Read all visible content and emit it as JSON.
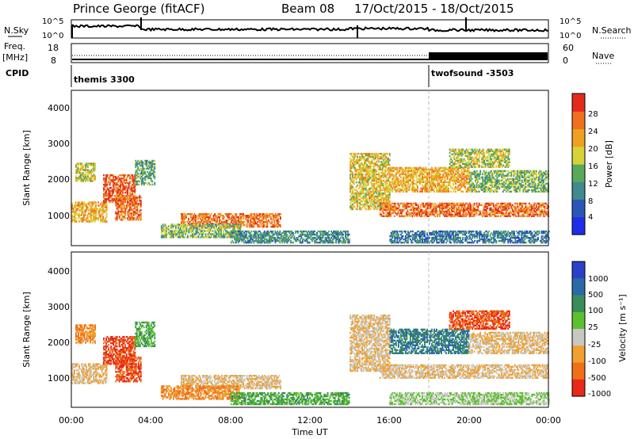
{
  "header": {
    "station": "Prince George (fitACF)",
    "beam": "Beam 08",
    "dates": "17/Oct/2015 - 18/Oct/2015"
  },
  "top_panels": {
    "nsky_label": "N.Sky",
    "nsearch_label": "N.Search",
    "noise_ticks_left": [
      "10^5",
      "10^0"
    ],
    "noise_ticks_right": [
      "10^5",
      "10^0"
    ],
    "freq_label_1": "Freq.",
    "freq_label_2": "[MHz]",
    "freq_ticks": [
      "18",
      "8"
    ],
    "nave_label": "Nave",
    "nave_ticks": [
      "60",
      "0"
    ],
    "cpid_label": "CPID",
    "cpid_programs": [
      {
        "name": "themis 3300",
        "start_hour": 0
      },
      {
        "name": "twofsound -3503",
        "start_hour": 18
      }
    ]
  },
  "power_panel": {
    "ylabel": "Slant Range [km]",
    "yticks": [
      "1000",
      "2000",
      "3000",
      "4000"
    ],
    "colorbar_label": "Power [dB]",
    "colorbar_ticks": [
      "4",
      "8",
      "12",
      "16",
      "20",
      "24",
      "28"
    ],
    "colors": [
      "#1f2de8",
      "#2a56b8",
      "#3e8a8c",
      "#5aa85c",
      "#d8d23a",
      "#f0a020",
      "#f07020",
      "#e42a1c"
    ]
  },
  "velocity_panel": {
    "ylabel": "Slant Range [km]",
    "yticks": [
      "1000",
      "2000",
      "3000",
      "4000"
    ],
    "colorbar_label": "Velocity [m s⁻¹]",
    "colorbar_ticks": [
      "1000",
      "500",
      "100",
      "25",
      "-25",
      "-100",
      "-500",
      "-1000"
    ],
    "colors": [
      "#2a40c8",
      "#2a6aa8",
      "#3a8c5a",
      "#5cc030",
      "#c8c8c0",
      "#f0a030",
      "#f07018",
      "#e82818"
    ]
  },
  "x_axis": {
    "label": "Time UT",
    "ticks": [
      "00:00",
      "04:00",
      "08:00",
      "12:00",
      "16:00",
      "20:00",
      "00:00"
    ]
  },
  "chart_data": {
    "type": "heatmap",
    "title": "Prince George (fitACF) Beam 08 17/Oct/2015 - 18/Oct/2015",
    "xlabel": "Time UT",
    "ylabel": "Slant Range [km]",
    "xlim_hours": [
      0,
      24
    ],
    "ylim_km": [
      180,
      4600
    ],
    "panels": [
      "Power [dB]",
      "Velocity [m s⁻¹]"
    ],
    "power_range_db": [
      0,
      30
    ],
    "velocity_range_ms": [
      -1000,
      1000
    ],
    "scatter_regions": [
      {
        "t0": 0.0,
        "t1": 1.8,
        "r0": 850,
        "r1": 1400,
        "power": 20,
        "velocity": -25
      },
      {
        "t0": 0.2,
        "t1": 1.2,
        "r0": 2000,
        "r1": 2500,
        "power": 16,
        "velocity": -100
      },
      {
        "t0": 1.6,
        "t1": 3.2,
        "r0": 1400,
        "r1": 2200,
        "power": 26,
        "velocity": -500
      },
      {
        "t0": 2.2,
        "t1": 3.5,
        "r0": 900,
        "r1": 1600,
        "power": 24,
        "velocity": -500
      },
      {
        "t0": 3.2,
        "t1": 4.2,
        "r0": 1900,
        "r1": 2600,
        "power": 12,
        "velocity": 100
      },
      {
        "t0": 5.5,
        "t1": 10.5,
        "r0": 700,
        "r1": 1100,
        "power": 24,
        "velocity": -25
      },
      {
        "t0": 4.5,
        "t1": 8.5,
        "r0": 400,
        "r1": 800,
        "power": 14,
        "velocity": -100
      },
      {
        "t0": 8.0,
        "t1": 14.0,
        "r0": 250,
        "r1": 600,
        "power": 10,
        "velocity": 100
      },
      {
        "t0": 14.0,
        "t1": 16.0,
        "r0": 1200,
        "r1": 2800,
        "power": 18,
        "velocity": -25
      },
      {
        "t0": 15.5,
        "t1": 24.0,
        "r0": 1000,
        "r1": 1400,
        "power": 24,
        "velocity": -25
      },
      {
        "t0": 16.0,
        "t1": 20.0,
        "r0": 1700,
        "r1": 2400,
        "power": 20,
        "velocity": 500
      },
      {
        "t0": 19.0,
        "t1": 22.0,
        "r0": 2400,
        "r1": 2900,
        "power": 16,
        "velocity": -500
      },
      {
        "t0": 20.0,
        "t1": 24.0,
        "r0": 1700,
        "r1": 2300,
        "power": 14,
        "velocity": -25
      },
      {
        "t0": 16.0,
        "t1": 24.0,
        "r0": 250,
        "r1": 600,
        "power": 8,
        "velocity": 25
      }
    ]
  }
}
